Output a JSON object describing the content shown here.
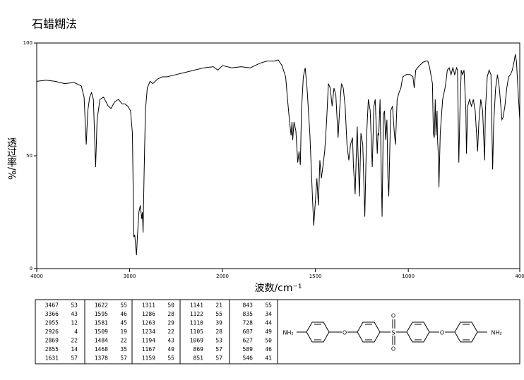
{
  "chart_data": {
    "type": "line",
    "title": "石蜡糊法",
    "xlabel": "波数/cm⁻¹",
    "ylabel": "透过率/%",
    "color": "#000000",
    "xlim": [
      4000,
      400
    ],
    "xscale": {
      "break": 2000,
      "factor": 2
    },
    "xticks": [
      4000,
      3000,
      2000,
      1500,
      1000,
      400
    ],
    "ylim": [
      0,
      100
    ],
    "yticks": [
      0,
      50,
      100
    ],
    "x": [
      4000,
      3900,
      3800,
      3700,
      3600,
      3520,
      3490,
      3467,
      3450,
      3430,
      3410,
      3390,
      3366,
      3350,
      3320,
      3280,
      3230,
      3200,
      3160,
      3120,
      3080,
      3050,
      3020,
      2990,
      2970,
      2960,
      2955,
      2945,
      2935,
      2926,
      2915,
      2900,
      2885,
      2869,
      2862,
      2855,
      2845,
      2830,
      2810,
      2780,
      2750,
      2700,
      2650,
      2600,
      2500,
      2400,
      2300,
      2200,
      2100,
      2050,
      2000,
      1950,
      1900,
      1850,
      1800,
      1760,
      1720,
      1700,
      1680,
      1660,
      1650,
      1640,
      1631,
      1626,
      1622,
      1615,
      1605,
      1595,
      1588,
      1581,
      1575,
      1565,
      1555,
      1545,
      1530,
      1515,
      1509,
      1500,
      1492,
      1484,
      1476,
      1468,
      1460,
      1450,
      1440,
      1430,
      1420,
      1410,
      1400,
      1390,
      1378,
      1370,
      1360,
      1350,
      1340,
      1330,
      1320,
      1311,
      1300,
      1295,
      1286,
      1280,
      1275,
      1270,
      1263,
      1255,
      1245,
      1234,
      1225,
      1215,
      1205,
      1194,
      1185,
      1178,
      1167,
      1163,
      1159,
      1152,
      1145,
      1141,
      1134,
      1128,
      1122,
      1115,
      1110,
      1105,
      1095,
      1085,
      1075,
      1069,
      1060,
      1050,
      1040,
      1030,
      1010,
      990,
      975,
      968,
      960,
      940,
      920,
      905,
      895,
      885,
      870,
      865,
      860,
      855,
      851,
      845,
      843,
      838,
      835,
      828,
      815,
      800,
      790,
      780,
      770,
      760,
      750,
      740,
      735,
      728,
      722,
      715,
      708,
      700,
      690,
      687,
      680,
      670,
      660,
      650,
      640,
      627,
      620,
      610,
      600,
      589,
      585,
      575,
      565,
      555,
      546,
      540,
      530,
      520,
      510,
      500,
      496,
      490,
      480,
      470,
      460,
      450,
      440,
      430,
      424,
      418,
      410,
      400
    ],
    "values": [
      83,
      83.5,
      83,
      82,
      82.5,
      81,
      76,
      55,
      70,
      76,
      78,
      75,
      45,
      66,
      75,
      76,
      72,
      71,
      74,
      75,
      73,
      73,
      72,
      70,
      60,
      30,
      14,
      15,
      10,
      6,
      15,
      25,
      28,
      22,
      25,
      16,
      40,
      70,
      80,
      83,
      82,
      84,
      85,
      85,
      86,
      87,
      88,
      89,
      89.5,
      88,
      90,
      89,
      89.5,
      89,
      91,
      92,
      92,
      92.5,
      90,
      85,
      75,
      66,
      59,
      65,
      57,
      65,
      61,
      47,
      52,
      46,
      70,
      85,
      89,
      80,
      60,
      30,
      19,
      30,
      40,
      28,
      48,
      40,
      45,
      52,
      65,
      82,
      80,
      72,
      80,
      77,
      58,
      70,
      82,
      80,
      72,
      55,
      48,
      55,
      58,
      45,
      33,
      50,
      63,
      50,
      32,
      60,
      55,
      23,
      58,
      75,
      70,
      45,
      72,
      75,
      51,
      60,
      59,
      75,
      40,
      23,
      68,
      70,
      57,
      66,
      41,
      32,
      70,
      72,
      60,
      55,
      75,
      78,
      80,
      85,
      86,
      86,
      85,
      80,
      88,
      90,
      91.5,
      92,
      92,
      89,
      82,
      60,
      58,
      75,
      59,
      70,
      58,
      50,
      36,
      60,
      75,
      81,
      88,
      89,
      86,
      89,
      86,
      89,
      88,
      47,
      70,
      88,
      86,
      88,
      70,
      51,
      72,
      75,
      72,
      75,
      70,
      52,
      65,
      75,
      70,
      48,
      70,
      85,
      88,
      86,
      44,
      65,
      80,
      86,
      80,
      70,
      66,
      67,
      72,
      80,
      85,
      86,
      88,
      92,
      95,
      92,
      80,
      66
    ]
  },
  "peak_table": {
    "columns": [
      {
        "wavenumber": [
          3467,
          3366,
          2955,
          2926,
          2869,
          2855,
          1631
        ],
        "transmittance": [
          53,
          43,
          12,
          4,
          22,
          14,
          57
        ]
      },
      {
        "wavenumber": [
          1622,
          1595,
          1581,
          1509,
          1484,
          1468,
          1378
        ],
        "transmittance": [
          55,
          46,
          45,
          19,
          22,
          35,
          57
        ]
      },
      {
        "wavenumber": [
          1311,
          1286,
          1263,
          1234,
          1194,
          1167,
          1159
        ],
        "transmittance": [
          50,
          28,
          29,
          22,
          43,
          49,
          55
        ]
      },
      {
        "wavenumber": [
          1141,
          1122,
          1110,
          1105,
          1069,
          869,
          851
        ],
        "transmittance": [
          21,
          55,
          39,
          28,
          53,
          57,
          57
        ]
      },
      {
        "wavenumber": [
          843,
          835,
          728,
          687,
          627,
          589,
          546
        ],
        "transmittance": [
          55,
          34,
          44,
          49,
          50,
          46,
          41
        ]
      }
    ]
  },
  "structure": {
    "labels": [
      "NH₂",
      "O",
      "S",
      "O",
      "O",
      "O",
      "NH₂"
    ]
  }
}
